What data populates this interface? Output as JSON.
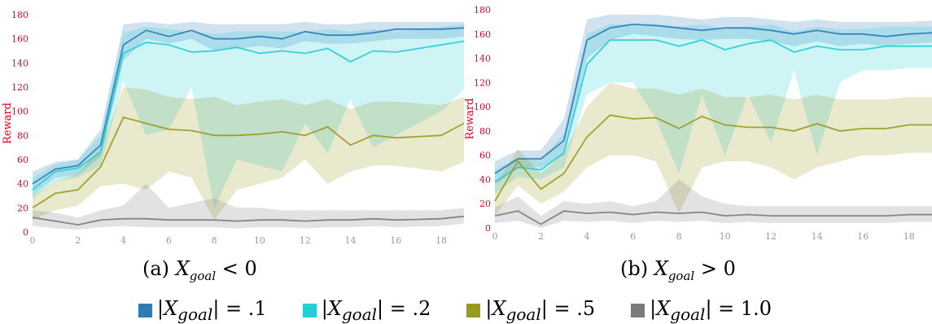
{
  "captions": {
    "a": {
      "prefix": "(a)",
      "var": "X",
      "sub": "goal",
      "rel": "< 0"
    },
    "b": {
      "prefix": "(b)",
      "var": "X",
      "sub": "goal",
      "rel": "> 0"
    }
  },
  "colors": {
    "g1": "#2e7bb6",
    "g2": "#22cfd6",
    "g5": "#9a9a1f",
    "g10": "#7b7b7b",
    "axis": "#e8001c",
    "tick_text": "#999999"
  },
  "legend": [
    {
      "label": "|X",
      "sub": "goal",
      "rest": "| = .1",
      "color": "#2e7bb6"
    },
    {
      "label": "|X",
      "sub": "goal",
      "rest": "| = .2",
      "color": "#22cfd6"
    },
    {
      "label": "|X",
      "sub": "goal",
      "rest": "| = .5",
      "color": "#9a9a1f"
    },
    {
      "label": "|X",
      "sub": "goal",
      "rest": "| = 1.0",
      "color": "#7b7b7b"
    }
  ],
  "chart_data": [
    {
      "type": "line",
      "ylabel": "Reward",
      "xlim": [
        0,
        19
      ],
      "ylim": [
        0,
        180
      ],
      "xticks": [
        0,
        2,
        4,
        6,
        8,
        10,
        12,
        14,
        16,
        18
      ],
      "yticks": [
        0,
        20,
        40,
        60,
        80,
        100,
        120,
        140,
        160,
        180
      ],
      "x": [
        0,
        1,
        2,
        3,
        4,
        5,
        6,
        7,
        8,
        9,
        10,
        11,
        12,
        13,
        14,
        15,
        16,
        18,
        19
      ],
      "series": [
        {
          "name": "|X_goal| = .1",
          "color": "#2e7bb6",
          "values": [
            40,
            52,
            55,
            72,
            155,
            167,
            162,
            167,
            160,
            160,
            162,
            160,
            166,
            163,
            163,
            165,
            168,
            168,
            169
          ],
          "lower": [
            30,
            45,
            47,
            62,
            142,
            160,
            156,
            160,
            150,
            152,
            154,
            152,
            158,
            156,
            156,
            158,
            160,
            160,
            162
          ],
          "upper": [
            50,
            58,
            60,
            85,
            172,
            174,
            172,
            174,
            172,
            172,
            172,
            172,
            174,
            172,
            172,
            174,
            174,
            174,
            174
          ]
        },
        {
          "name": "|X_goal| = .2",
          "color": "#22cfd6",
          "values": [
            35,
            50,
            53,
            66,
            148,
            157,
            155,
            149,
            150,
            153,
            148,
            150,
            148,
            152,
            141,
            150,
            149,
            155,
            158
          ],
          "lower": [
            28,
            42,
            45,
            55,
            125,
            80,
            85,
            120,
            20,
            60,
            55,
            50,
            90,
            65,
            110,
            70,
            80,
            100,
            118
          ],
          "upper": [
            45,
            56,
            60,
            80,
            165,
            170,
            168,
            166,
            164,
            166,
            166,
            166,
            166,
            168,
            166,
            168,
            166,
            170,
            172
          ]
        },
        {
          "name": "|X_goal| = .5",
          "color": "#9a9a1f",
          "values": [
            20,
            32,
            35,
            54,
            95,
            90,
            85,
            84,
            80,
            80,
            81,
            83,
            80,
            87,
            72,
            80,
            78,
            80,
            90
          ],
          "lower": [
            10,
            18,
            22,
            38,
            40,
            35,
            50,
            45,
            10,
            35,
            40,
            45,
            60,
            40,
            50,
            55,
            55,
            50,
            58
          ],
          "upper": [
            30,
            42,
            48,
            70,
            120,
            118,
            112,
            110,
            112,
            105,
            108,
            110,
            105,
            110,
            102,
            108,
            108,
            105,
            112
          ]
        },
        {
          "name": "|X_goal| = 1.0",
          "color": "#7b7b7b",
          "values": [
            12,
            9,
            6,
            10,
            11,
            11,
            10,
            10,
            10,
            9,
            10,
            10,
            9,
            10,
            10,
            11,
            10,
            11,
            13
          ],
          "lower": [
            5,
            3,
            2,
            4,
            5,
            4,
            4,
            4,
            4,
            3,
            4,
            4,
            3,
            4,
            4,
            5,
            4,
            5,
            7
          ],
          "upper": [
            18,
            16,
            12,
            18,
            22,
            40,
            20,
            24,
            28,
            20,
            20,
            18,
            18,
            18,
            18,
            18,
            18,
            18,
            20
          ]
        }
      ]
    },
    {
      "type": "line",
      "ylabel": "Reward",
      "xlim": [
        0,
        19
      ],
      "ylim": [
        0,
        180
      ],
      "xticks": [
        0,
        2,
        4,
        6,
        8,
        10,
        12,
        14,
        16,
        18
      ],
      "yticks": [
        0,
        20,
        40,
        60,
        80,
        100,
        120,
        140,
        160,
        180
      ],
      "x": [
        0,
        1,
        2,
        3,
        4,
        5,
        6,
        7,
        8,
        9,
        10,
        11,
        12,
        13,
        14,
        15,
        16,
        17,
        18,
        19
      ],
      "series": [
        {
          "name": "|X_goal| = .1",
          "color": "#2e7bb6",
          "values": [
            45,
            57,
            57,
            72,
            155,
            165,
            168,
            167,
            165,
            163,
            165,
            165,
            163,
            160,
            163,
            160,
            160,
            158,
            160,
            161
          ],
          "lower": [
            35,
            50,
            50,
            60,
            140,
            155,
            160,
            158,
            156,
            155,
            156,
            156,
            154,
            150,
            154,
            150,
            152,
            150,
            152,
            153
          ],
          "upper": [
            55,
            64,
            64,
            90,
            172,
            176,
            176,
            176,
            174,
            172,
            174,
            174,
            172,
            170,
            172,
            170,
            170,
            170,
            170,
            171
          ]
        },
        {
          "name": "|X_goal| = .2",
          "color": "#22cfd6",
          "values": [
            38,
            50,
            48,
            62,
            135,
            155,
            155,
            155,
            150,
            155,
            147,
            152,
            155,
            145,
            150,
            147,
            147,
            150,
            150,
            150
          ],
          "lower": [
            28,
            42,
            40,
            50,
            110,
            120,
            120,
            90,
            45,
            110,
            60,
            110,
            70,
            130,
            60,
            120,
            130,
            130,
            132,
            132
          ],
          "upper": [
            48,
            58,
            56,
            78,
            160,
            168,
            168,
            168,
            166,
            168,
            164,
            166,
            168,
            162,
            166,
            164,
            164,
            166,
            166,
            166
          ]
        },
        {
          "name": "|X_goal| = .5",
          "color": "#9a9a1f",
          "values": [
            22,
            55,
            32,
            45,
            75,
            93,
            90,
            91,
            82,
            92,
            85,
            83,
            83,
            80,
            86,
            80,
            82,
            82,
            85,
            85
          ],
          "lower": [
            10,
            35,
            20,
            30,
            50,
            60,
            60,
            55,
            12,
            50,
            55,
            55,
            50,
            40,
            50,
            55,
            60,
            60,
            62,
            62
          ],
          "upper": [
            35,
            65,
            45,
            62,
            100,
            120,
            115,
            115,
            110,
            115,
            108,
            108,
            110,
            106,
            110,
            106,
            106,
            106,
            108,
            108
          ]
        },
        {
          "name": "|X_goal| = 1.0",
          "color": "#7b7b7b",
          "values": [
            10,
            14,
            3,
            14,
            12,
            13,
            11,
            13,
            12,
            13,
            10,
            11,
            10,
            10,
            10,
            10,
            10,
            10,
            11,
            11
          ],
          "lower": [
            4,
            6,
            0,
            6,
            5,
            6,
            4,
            6,
            5,
            6,
            4,
            5,
            4,
            4,
            4,
            4,
            4,
            4,
            5,
            5
          ],
          "upper": [
            17,
            26,
            10,
            22,
            20,
            22,
            18,
            22,
            40,
            26,
            20,
            18,
            18,
            18,
            18,
            18,
            18,
            18,
            18,
            18
          ]
        }
      ]
    }
  ]
}
